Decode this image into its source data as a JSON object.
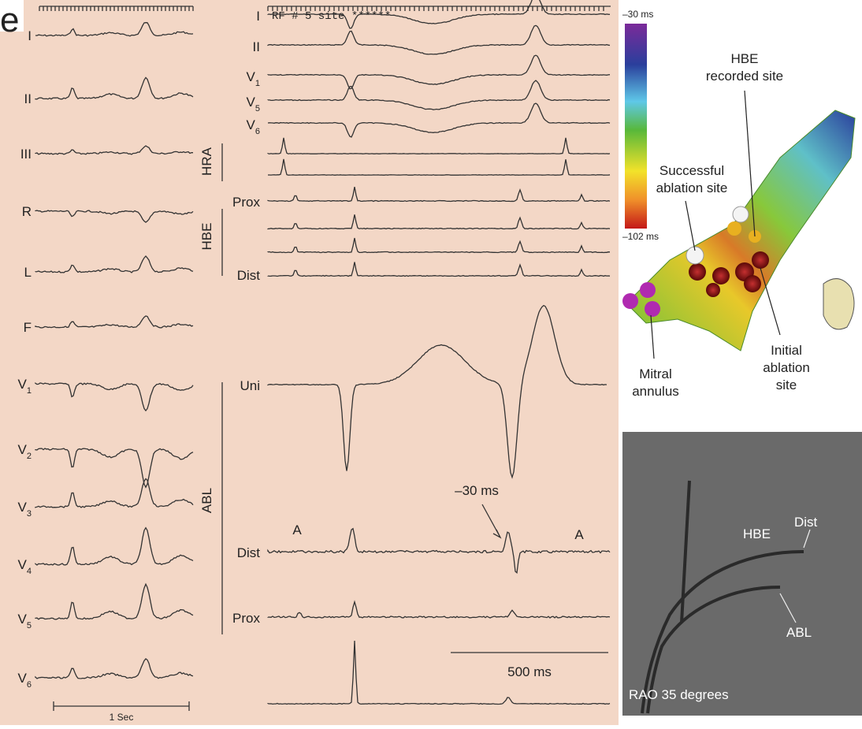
{
  "corner_text": "e",
  "surface_ecg": {
    "leads": [
      {
        "name": "I"
      },
      {
        "name": "II"
      },
      {
        "name": "III"
      },
      {
        "name": "R"
      },
      {
        "name": "L"
      },
      {
        "name": "F"
      },
      {
        "name": "V",
        "sub": "1"
      },
      {
        "name": "V",
        "sub": "2"
      },
      {
        "name": "V",
        "sub": "3"
      },
      {
        "name": "V",
        "sub": "4"
      },
      {
        "name": "V",
        "sub": "5"
      },
      {
        "name": "V",
        "sub": "6"
      }
    ],
    "scale_label": "1 Sec"
  },
  "intracardiac": {
    "header_text": "RF # 5 site ******",
    "surface_leads": [
      {
        "name": "I"
      },
      {
        "name": "II"
      },
      {
        "name": "V",
        "sub": "1"
      },
      {
        "name": "V",
        "sub": "5"
      },
      {
        "name": "V",
        "sub": "6"
      }
    ],
    "groups": [
      "HRA",
      "HBE",
      "ABL"
    ],
    "channel_labels": [
      "Prox",
      "Dist",
      "Uni",
      "Dist",
      "Prox"
    ],
    "annotations": [
      "A",
      "A",
      "–30 ms"
    ],
    "scale_label": "500 ms"
  },
  "activation_map": {
    "scale_top": "–30 ms",
    "scale_bottom": "–102 ms",
    "labels": [
      [
        "HBE",
        "recorded site"
      ],
      [
        "Successful",
        "ablation site"
      ],
      [
        "Mitral",
        "annulus"
      ],
      [
        "Initial",
        "ablation",
        "site"
      ]
    ]
  },
  "fluoroscopy": {
    "labels": [
      "HBE",
      "Dist",
      "ABL"
    ],
    "view": "RAO 35 degrees"
  }
}
